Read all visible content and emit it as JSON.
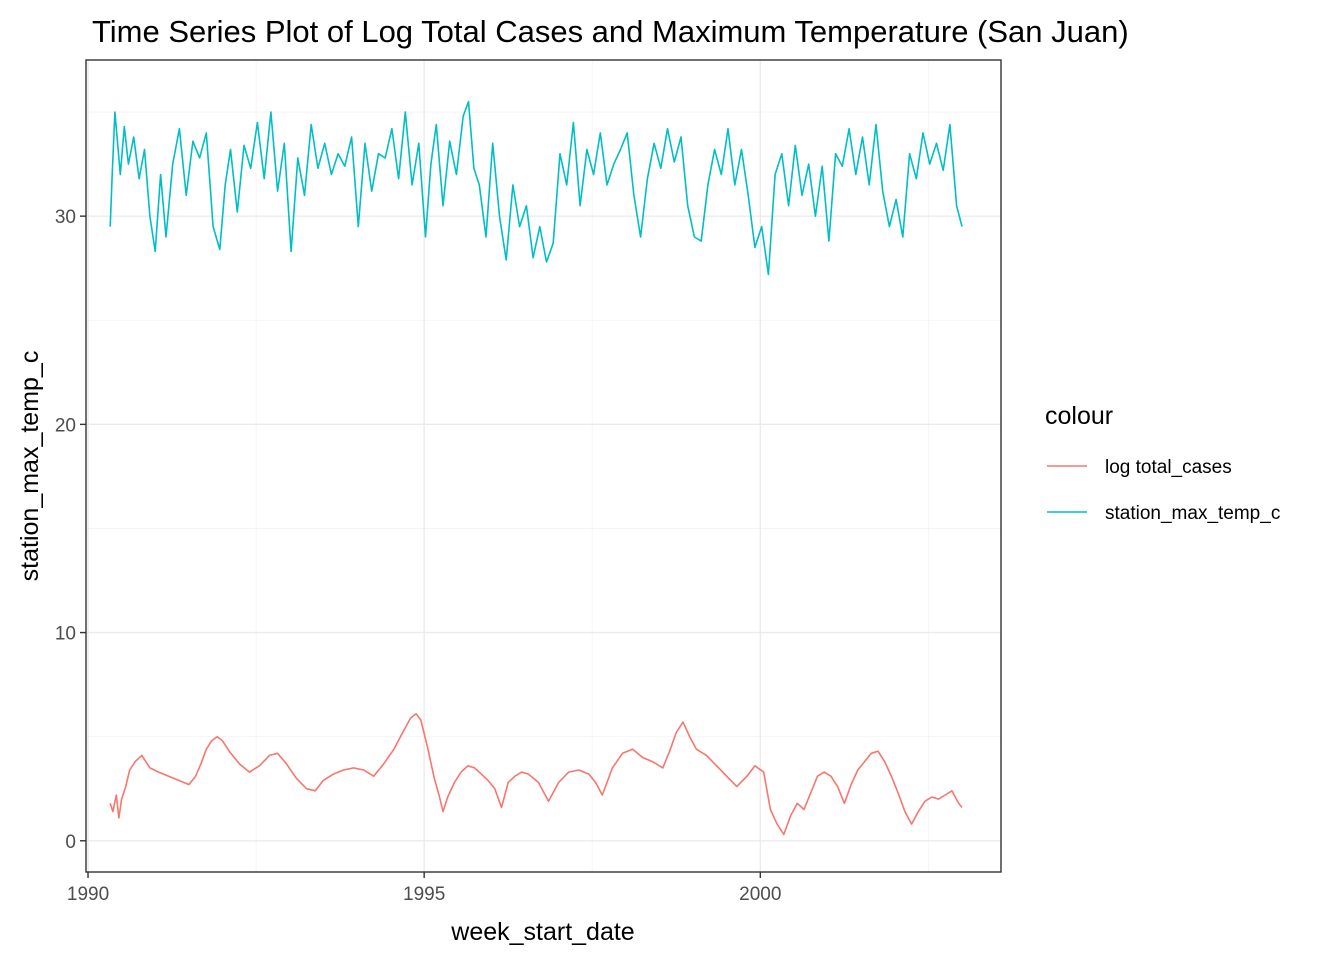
{
  "chart_data": {
    "type": "line",
    "title": "Time Series Plot of Log Total Cases and Maximum Temperature (San Juan)",
    "xlabel": "week_start_date",
    "ylabel": "station_max_temp_c",
    "xlim": [
      1989.97,
      2003.58
    ],
    "ylim": [
      -1.5,
      37.5
    ],
    "x_ticks": [
      1990,
      1995,
      2000
    ],
    "y_ticks": [
      0,
      10,
      20,
      30
    ],
    "x_tick_labels": [
      "1990",
      "1995",
      "2000"
    ],
    "y_tick_labels": [
      "0",
      "10",
      "20",
      "30"
    ],
    "grid": true,
    "legend": {
      "title": "colour",
      "position": "right"
    },
    "series": [
      {
        "name": "log total_cases",
        "color": "#F8766D",
        "x": [
          1990.33,
          1990.37,
          1990.42,
          1990.46,
          1990.5,
          1990.56,
          1990.62,
          1990.7,
          1990.8,
          1990.92,
          1991.05,
          1991.2,
          1991.35,
          1991.5,
          1991.6,
          1991.68,
          1991.76,
          1991.84,
          1991.92,
          1992.0,
          1992.1,
          1992.25,
          1992.4,
          1992.55,
          1992.7,
          1992.82,
          1992.95,
          1993.1,
          1993.25,
          1993.38,
          1993.5,
          1993.65,
          1993.8,
          1993.95,
          1994.1,
          1994.25,
          1994.4,
          1994.55,
          1994.68,
          1994.8,
          1994.88,
          1994.95,
          1995.05,
          1995.15,
          1995.22,
          1995.28,
          1995.35,
          1995.45,
          1995.55,
          1995.65,
          1995.75,
          1995.85,
          1995.95,
          1996.05,
          1996.15,
          1996.25,
          1996.35,
          1996.45,
          1996.55,
          1996.7,
          1996.85,
          1997.0,
          1997.15,
          1997.3,
          1997.45,
          1997.55,
          1997.65,
          1997.8,
          1997.95,
          1998.1,
          1998.25,
          1998.4,
          1998.55,
          1998.65,
          1998.75,
          1998.85,
          1998.95,
          1999.05,
          1999.2,
          1999.35,
          1999.5,
          1999.65,
          1999.8,
          1999.92,
          2000.05,
          2000.15,
          2000.25,
          2000.35,
          2000.45,
          2000.55,
          2000.65,
          2000.75,
          2000.85,
          2000.95,
          2001.05,
          2001.15,
          2001.25,
          2001.35,
          2001.45,
          2001.55,
          2001.65,
          2001.75,
          2001.85,
          2001.95,
          2002.05,
          2002.15,
          2002.25,
          2002.35,
          2002.45,
          2002.55,
          2002.65,
          2002.75,
          2002.85,
          2002.95,
          2003.0
        ],
        "y": [
          1.8,
          1.4,
          2.2,
          1.1,
          2.0,
          2.6,
          3.4,
          3.8,
          4.1,
          3.5,
          3.3,
          3.1,
          2.9,
          2.7,
          3.1,
          3.7,
          4.4,
          4.8,
          5.0,
          4.8,
          4.3,
          3.7,
          3.3,
          3.6,
          4.1,
          4.2,
          3.7,
          3.0,
          2.5,
          2.4,
          2.9,
          3.2,
          3.4,
          3.5,
          3.4,
          3.1,
          3.7,
          4.4,
          5.2,
          5.9,
          6.1,
          5.8,
          4.5,
          3.0,
          2.2,
          1.4,
          2.1,
          2.8,
          3.3,
          3.6,
          3.5,
          3.2,
          2.9,
          2.5,
          1.6,
          2.8,
          3.1,
          3.3,
          3.2,
          2.8,
          1.9,
          2.8,
          3.3,
          3.4,
          3.2,
          2.8,
          2.2,
          3.5,
          4.2,
          4.4,
          4.0,
          3.8,
          3.5,
          4.3,
          5.2,
          5.7,
          5.0,
          4.4,
          4.1,
          3.6,
          3.1,
          2.6,
          3.1,
          3.6,
          3.3,
          1.5,
          0.8,
          0.3,
          1.2,
          1.8,
          1.5,
          2.3,
          3.1,
          3.3,
          3.1,
          2.6,
          1.8,
          2.7,
          3.4,
          3.8,
          4.2,
          4.3,
          3.8,
          3.1,
          2.3,
          1.4,
          0.8,
          1.4,
          1.9,
          2.1,
          2.0,
          2.2,
          2.4,
          1.8,
          1.6
        ]
      },
      {
        "name": "station_max_temp_c",
        "color": "#00BFC4",
        "x": [
          1990.33,
          1990.36,
          1990.4,
          1990.44,
          1990.48,
          1990.54,
          1990.6,
          1990.68,
          1990.76,
          1990.84,
          1990.92,
          1991.0,
          1991.08,
          1991.16,
          1991.26,
          1991.36,
          1991.46,
          1991.56,
          1991.66,
          1991.76,
          1991.86,
          1991.96,
          1992.04,
          1992.12,
          1992.22,
          1992.32,
          1992.42,
          1992.52,
          1992.62,
          1992.72,
          1992.82,
          1992.92,
          1993.02,
          1993.12,
          1993.22,
          1993.32,
          1993.42,
          1993.52,
          1993.62,
          1993.72,
          1993.82,
          1993.92,
          1994.02,
          1994.12,
          1994.22,
          1994.32,
          1994.42,
          1994.52,
          1994.62,
          1994.72,
          1994.82,
          1994.92,
          1995.02,
          1995.1,
          1995.18,
          1995.28,
          1995.38,
          1995.48,
          1995.58,
          1995.66,
          1995.74,
          1995.82,
          1995.92,
          1996.02,
          1996.12,
          1996.22,
          1996.32,
          1996.42,
          1996.52,
          1996.62,
          1996.72,
          1996.82,
          1996.92,
          1997.02,
          1997.12,
          1997.22,
          1997.32,
          1997.42,
          1997.52,
          1997.62,
          1997.72,
          1997.82,
          1997.92,
          1998.02,
          1998.12,
          1998.22,
          1998.32,
          1998.42,
          1998.52,
          1998.62,
          1998.72,
          1998.82,
          1998.92,
          1999.02,
          1999.12,
          1999.22,
          1999.32,
          1999.42,
          1999.52,
          1999.62,
          1999.72,
          1999.82,
          1999.92,
          2000.02,
          2000.12,
          2000.22,
          2000.32,
          2000.42,
          2000.52,
          2000.62,
          2000.72,
          2000.82,
          2000.92,
          2001.02,
          2001.12,
          2001.22,
          2001.32,
          2001.42,
          2001.52,
          2001.62,
          2001.72,
          2001.82,
          2001.92,
          2002.02,
          2002.12,
          2002.22,
          2002.32,
          2002.42,
          2002.52,
          2002.62,
          2002.72,
          2002.82,
          2002.92,
          2003.0
        ],
        "y": [
          29.5,
          32.0,
          35.0,
          33.5,
          32.0,
          34.3,
          32.5,
          33.8,
          31.8,
          33.2,
          30.0,
          28.3,
          32.0,
          29.0,
          32.5,
          34.2,
          31.0,
          33.6,
          32.8,
          34.0,
          29.5,
          28.4,
          31.5,
          33.2,
          30.2,
          33.4,
          32.3,
          34.5,
          31.8,
          35.0,
          31.2,
          33.5,
          28.3,
          32.8,
          31.0,
          34.4,
          32.3,
          33.5,
          32.0,
          33.0,
          32.4,
          33.8,
          29.5,
          33.5,
          31.2,
          33.0,
          32.8,
          34.2,
          31.8,
          35.0,
          31.5,
          33.5,
          29.0,
          32.5,
          34.4,
          30.5,
          33.6,
          32.0,
          34.8,
          35.5,
          32.3,
          31.5,
          29.0,
          33.5,
          30.0,
          27.9,
          31.5,
          29.5,
          30.5,
          28.0,
          29.5,
          27.8,
          28.7,
          33.0,
          31.5,
          34.5,
          30.5,
          33.2,
          32.0,
          34.0,
          31.5,
          32.5,
          33.2,
          34.0,
          31.0,
          29.0,
          31.8,
          33.5,
          32.3,
          34.2,
          32.6,
          33.8,
          30.5,
          29.0,
          28.8,
          31.5,
          33.2,
          32.0,
          34.2,
          31.5,
          33.2,
          31.0,
          28.5,
          29.5,
          27.2,
          32.0,
          33.0,
          30.5,
          33.4,
          31.0,
          32.5,
          30.0,
          32.4,
          28.8,
          33.0,
          32.4,
          34.2,
          32.0,
          33.8,
          31.5,
          34.4,
          31.2,
          29.5,
          30.8,
          29.0,
          33.0,
          31.8,
          34.0,
          32.5,
          33.5,
          32.2,
          34.4,
          30.5,
          29.5
        ]
      }
    ]
  }
}
